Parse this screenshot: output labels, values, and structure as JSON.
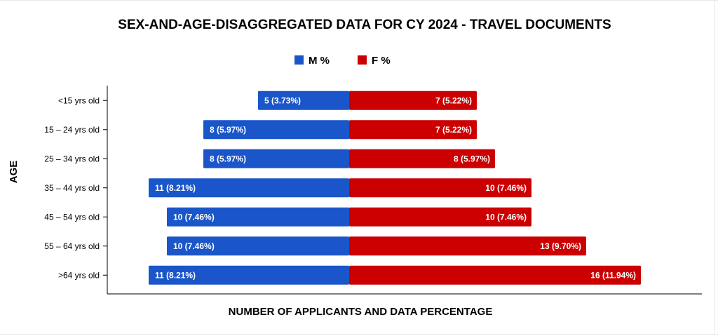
{
  "chart_data": {
    "type": "bar",
    "orientation": "horizontal-diverging",
    "title": "SEX-AND-AGE-DISAGGREGATED DATA FOR CY 2024 - TRAVEL DOCUMENTS",
    "xlabel": "NUMBER OF APPLICANTS  AND DATA PERCENTAGE",
    "ylabel": "AGE",
    "categories": [
      "<15 yrs old",
      "15 – 24 yrs old",
      "25 – 34 yrs old",
      "35 – 44 yrs old",
      "45 – 54 yrs old",
      "55 – 64 yrs old",
      ">64 yrs old"
    ],
    "series": [
      {
        "name": "M %",
        "color": "#1a56c9",
        "side": "left",
        "values": [
          5,
          8,
          8,
          11,
          10,
          10,
          11
        ],
        "labels": [
          "5  (3.73%)",
          "8  (5.97%)",
          "8  (5.97%)",
          "11  (8.21%)",
          "10  (7.46%)",
          "10  (7.46%)",
          "11  (8.21%)"
        ]
      },
      {
        "name": "F %",
        "color": "#cc0000",
        "side": "right",
        "values": [
          7,
          7,
          8,
          10,
          10,
          13,
          16
        ],
        "labels": [
          "7  (5.22%)",
          "7  (5.22%)",
          "8  (5.97%)",
          "10  (7.46%)",
          "10  (7.46%)",
          "13  (9.70%)",
          "16  (11.94%)"
        ]
      }
    ],
    "xlim": [
      -11,
      16
    ],
    "legend_position": "top-center",
    "grid": false
  }
}
